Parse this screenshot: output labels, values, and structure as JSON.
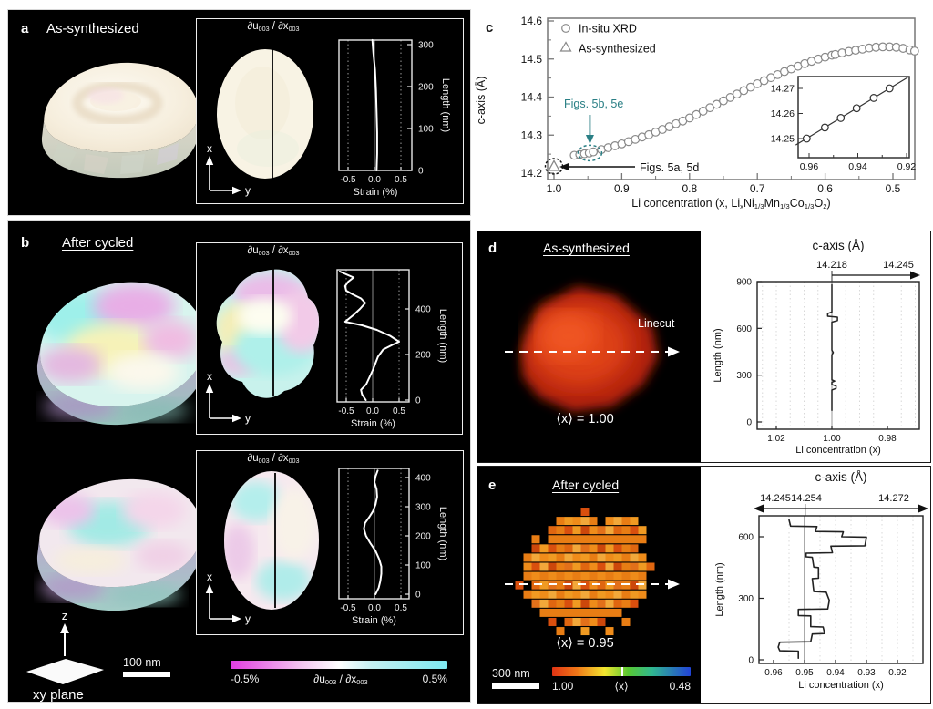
{
  "panel_a": {
    "label": "a",
    "title": "As-synthesized"
  },
  "panel_b": {
    "label": "b",
    "title": "After cycled"
  },
  "panel_c": {
    "label": "c"
  },
  "panel_d": {
    "label": "d",
    "title": "As-synthesized",
    "linecut_label": "Linecut",
    "avg_label": "⟨x⟩ = 1.00"
  },
  "panel_e": {
    "label": "e",
    "title": "After cycled",
    "avg_label": "⟨x⟩ = 0.95"
  },
  "shared": {
    "axis_x": "x",
    "axis_y": "y",
    "axis_z": "z",
    "xy_plane_label": "xy plane",
    "scalebar_a": "100 nm",
    "scalebar_e": "300 nm"
  },
  "du_parts": {
    "p1": "∂u",
    "s1": "003",
    "p2": " / ∂x",
    "s2": "003"
  },
  "c_xlabel_parts": {
    "p1": "Li concentration (x, Li",
    "s1": "x",
    "p2": "Ni",
    "s2": "1/3",
    "p3": "Mn",
    "s3": "1/3",
    "p4": "Co",
    "s4": "1/3",
    "p5": "O",
    "s5": "2",
    "p6": ")"
  },
  "strain_colorbar": {
    "min_label": "-0.5%",
    "max_label": "0.5%",
    "left_color": "#e23ce2",
    "mid_color": "#ffffff",
    "right_color": "#7de9f2"
  },
  "x_colorbar": {
    "min_label": "1.00",
    "center_label": "⟨x⟩",
    "max_label": "0.48",
    "colors": [
      "#e03414",
      "#f07818",
      "#f2e630",
      "#58c832",
      "#30b890",
      "#2244d8"
    ]
  },
  "chart_data": [
    {
      "id": "c-main",
      "type": "scatter",
      "xlabel": "Li concentration (x, LixNi1/3Mn1/3Co1/3O2)",
      "ylabel": "c-axis (Å)",
      "xlim": [
        1.06,
        0.44
      ],
      "ylim": [
        14.2,
        14.6
      ],
      "xticks": [
        "1.0",
        "0.9",
        "0.8",
        "0.7",
        "0.6",
        "0.5"
      ],
      "xtick_values": [
        1.0,
        0.9,
        0.8,
        0.7,
        0.6,
        0.5
      ],
      "yticks": [
        "14.2",
        "14.3",
        "14.4",
        "14.5",
        "14.6"
      ],
      "ytick_values": [
        14.2,
        14.3,
        14.4,
        14.5,
        14.6
      ],
      "legend": [
        {
          "marker": "circle",
          "label": "In-situ XRD"
        },
        {
          "marker": "triangle",
          "label": "As-synthesized"
        }
      ],
      "series": [
        {
          "name": "In-situ XRD",
          "marker": "circle",
          "points": [
            [
              0.97,
              14.247
            ],
            [
              0.962,
              14.249
            ],
            [
              0.955,
              14.251
            ],
            [
              0.948,
              14.253
            ],
            [
              0.942,
              14.256
            ],
            [
              0.93,
              14.262
            ],
            [
              0.92,
              14.267
            ],
            [
              0.91,
              14.272
            ],
            [
              0.9,
              14.277
            ],
            [
              0.89,
              14.283
            ],
            [
              0.88,
              14.289
            ],
            [
              0.87,
              14.295
            ],
            [
              0.86,
              14.301
            ],
            [
              0.85,
              14.308
            ],
            [
              0.84,
              14.315
            ],
            [
              0.83,
              14.322
            ],
            [
              0.82,
              14.33
            ],
            [
              0.81,
              14.337
            ],
            [
              0.8,
              14.345
            ],
            [
              0.79,
              14.354
            ],
            [
              0.78,
              14.363
            ],
            [
              0.77,
              14.372
            ],
            [
              0.76,
              14.381
            ],
            [
              0.75,
              14.39
            ],
            [
              0.74,
              14.399
            ],
            [
              0.73,
              14.408
            ],
            [
              0.72,
              14.417
            ],
            [
              0.71,
              14.426
            ],
            [
              0.7,
              14.435
            ],
            [
              0.69,
              14.443
            ],
            [
              0.68,
              14.451
            ],
            [
              0.67,
              14.459
            ],
            [
              0.66,
              14.467
            ],
            [
              0.65,
              14.474
            ],
            [
              0.64,
              14.481
            ],
            [
              0.63,
              14.488
            ],
            [
              0.62,
              14.494
            ],
            [
              0.61,
              14.5
            ],
            [
              0.6,
              14.505
            ],
            [
              0.59,
              14.51
            ],
            [
              0.585,
              14.512
            ],
            [
              0.575,
              14.516
            ],
            [
              0.565,
              14.52
            ],
            [
              0.555,
              14.523
            ],
            [
              0.545,
              14.526
            ],
            [
              0.535,
              14.529
            ],
            [
              0.525,
              14.531
            ],
            [
              0.515,
              14.532
            ],
            [
              0.505,
              14.532
            ],
            [
              0.495,
              14.531
            ],
            [
              0.485,
              14.528
            ],
            [
              0.475,
              14.524
            ],
            [
              0.468,
              14.521
            ]
          ]
        },
        {
          "name": "As-synthesized",
          "marker": "triangle",
          "points": [
            [
              1.0,
              14.218
            ]
          ]
        }
      ],
      "annotations": [
        {
          "text": "Figs. 5b, 5e",
          "color": "#2a7f85",
          "target": [
            0.947,
            14.253
          ]
        },
        {
          "text": "Figs. 5a, 5d",
          "color": "#111111",
          "target": [
            1.0,
            14.218
          ]
        }
      ]
    },
    {
      "id": "c-inset",
      "type": "scatter",
      "xticks": [
        "0.96",
        "0.94",
        "0.92"
      ],
      "xtick_values": [
        0.96,
        0.94,
        0.92
      ],
      "yticks": [
        "14.25",
        "14.26",
        "14.27"
      ],
      "ytick_values": [
        14.25,
        14.26,
        14.27
      ],
      "xlim": [
        0.965,
        0.918
      ],
      "ylim": [
        14.246,
        14.276
      ],
      "line": [
        [
          0.9655,
          14.2474
        ],
        [
          0.9195,
          14.2744
        ]
      ],
      "points": [
        [
          0.961,
          14.25
        ],
        [
          0.9535,
          14.2544
        ],
        [
          0.947,
          14.2582
        ],
        [
          0.9405,
          14.2621
        ],
        [
          0.9335,
          14.2662
        ],
        [
          0.927,
          14.27
        ]
      ]
    },
    {
      "id": "a-strain",
      "type": "line",
      "xlabel": "Strain (%)",
      "ylabel": "Length (nm)",
      "xticks": [
        "-0.5",
        "0.0",
        "0.5"
      ],
      "xtick_values": [
        -0.5,
        0,
        0.5
      ],
      "yticks": [
        "0",
        "100",
        "200",
        "300"
      ],
      "ytick_values": [
        0,
        100,
        200,
        300
      ],
      "xlim": [
        -0.69,
        0.71
      ],
      "ylim": [
        0,
        311
      ],
      "points": [
        [
          0.04,
          0
        ],
        [
          0.05,
          40
        ],
        [
          0.05,
          90
        ],
        [
          0.04,
          140
        ],
        [
          0.03,
          190
        ],
        [
          0.01,
          240
        ],
        [
          -0.02,
          280
        ],
        [
          -0.04,
          311
        ]
      ]
    },
    {
      "id": "b-strain-top",
      "type": "line",
      "xlabel": "Strain (%)",
      "ylabel": "Length (nm)",
      "xticks": [
        "-0.5",
        "0.0",
        "0.5"
      ],
      "xtick_values": [
        -0.5,
        0,
        0.5
      ],
      "yticks": [
        "0",
        "200",
        "400"
      ],
      "ytick_values": [
        0,
        200,
        400
      ],
      "xlim": [
        -0.69,
        0.71
      ],
      "ylim": [
        0,
        568
      ],
      "points": [
        [
          -0.13,
          0
        ],
        [
          -0.2,
          25
        ],
        [
          -0.22,
          45
        ],
        [
          -0.12,
          70
        ],
        [
          -0.06,
          100
        ],
        [
          0,
          130
        ],
        [
          0.05,
          160
        ],
        [
          0.1,
          190
        ],
        [
          0.2,
          222
        ],
        [
          0.37,
          242
        ],
        [
          0.5,
          256
        ],
        [
          0.33,
          282
        ],
        [
          0.08,
          308
        ],
        [
          -0.2,
          328
        ],
        [
          -0.52,
          344
        ],
        [
          -0.36,
          374
        ],
        [
          -0.24,
          400
        ],
        [
          -0.14,
          426
        ],
        [
          -0.22,
          446
        ],
        [
          -0.38,
          464
        ],
        [
          -0.5,
          480
        ],
        [
          -0.52,
          500
        ],
        [
          -0.46,
          520
        ],
        [
          -0.36,
          538
        ],
        [
          -0.5,
          552
        ],
        [
          -0.62,
          564
        ]
      ]
    },
    {
      "id": "b-strain-bottom",
      "type": "line",
      "xlabel": "Strain (%)",
      "ylabel": "Length (nm)",
      "xticks": [
        "-0.5",
        "0.0",
        "0.5"
      ],
      "xtick_values": [
        -0.5,
        0,
        0.5
      ],
      "yticks": [
        "0",
        "100",
        "200",
        "300",
        "400"
      ],
      "ytick_values": [
        0,
        100,
        200,
        300,
        400
      ],
      "xlim": [
        -0.69,
        0.71
      ],
      "ylim": [
        0,
        431
      ],
      "points": [
        [
          0.02,
          0
        ],
        [
          0.08,
          22
        ],
        [
          0.11,
          45
        ],
        [
          0.13,
          70
        ],
        [
          0.13,
          95
        ],
        [
          0.09,
          120
        ],
        [
          0.02,
          148
        ],
        [
          -0.08,
          175
        ],
        [
          -0.16,
          200
        ],
        [
          -0.2,
          224
        ],
        [
          -0.18,
          244
        ],
        [
          -0.1,
          264
        ],
        [
          -0.03,
          284
        ],
        [
          0.02,
          308
        ],
        [
          0.05,
          334
        ],
        [
          0.04,
          360
        ],
        [
          0,
          384
        ],
        [
          0.02,
          404
        ],
        [
          0.06,
          424
        ]
      ]
    },
    {
      "id": "d-li-profile",
      "type": "line",
      "title": "c-axis (Å)",
      "top_axis": {
        "left_label": "14.218",
        "right_label": "14.245",
        "arrow": "right"
      },
      "xlabel": "Li concentration (x)",
      "ylabel": "Length (nm)",
      "xticks": [
        "1.02",
        "1.00",
        "0.98"
      ],
      "xtick_values": [
        1.02,
        1.0,
        0.98
      ],
      "yticks": [
        "0",
        "300",
        "600",
        "900"
      ],
      "ytick_values": [
        0,
        300,
        600,
        900
      ],
      "xlim": [
        1.027,
        0.968
      ],
      "ylim": [
        0,
        900
      ],
      "ref_x": 1.0,
      "points": [
        [
          1.0,
          75
        ],
        [
          1.0,
          205
        ],
        [
          0.9985,
          215
        ],
        [
          0.9985,
          230
        ],
        [
          1.0,
          240
        ],
        [
          1.0,
          255
        ],
        [
          0.999,
          262
        ],
        [
          1.0,
          270
        ],
        [
          1.0,
          430
        ],
        [
          0.9995,
          445
        ],
        [
          1.0,
          460
        ],
        [
          1.0,
          640
        ],
        [
          0.998,
          650
        ],
        [
          0.998,
          672
        ],
        [
          1.0015,
          678
        ],
        [
          1.0015,
          695
        ],
        [
          1.0,
          705
        ],
        [
          1.0,
          880
        ]
      ]
    },
    {
      "id": "e-li-profile",
      "type": "line",
      "title": "c-axis (Å)",
      "top_axis": {
        "left_label": "14.245",
        "center_label": "14.254",
        "right_label": "14.272",
        "arrow": "both"
      },
      "xlabel": "Li concentration (x)",
      "ylabel": "Length (nm)",
      "xticks": [
        "0.96",
        "0.95",
        "0.94",
        "0.93",
        "0.92"
      ],
      "xtick_values": [
        0.96,
        0.95,
        0.94,
        0.93,
        0.92
      ],
      "yticks": [
        "0",
        "300",
        "600"
      ],
      "ytick_values": [
        0,
        300,
        600
      ],
      "xlim": [
        0.965,
        0.912
      ],
      "ylim": [
        0,
        690
      ],
      "ref_x": 0.95,
      "points": [
        [
          0.952,
          8
        ],
        [
          0.952,
          42
        ],
        [
          0.958,
          44
        ],
        [
          0.9585,
          62
        ],
        [
          0.958,
          86
        ],
        [
          0.948,
          88
        ],
        [
          0.9475,
          126
        ],
        [
          0.9435,
          128
        ],
        [
          0.944,
          160
        ],
        [
          0.948,
          162
        ],
        [
          0.948,
          214
        ],
        [
          0.952,
          216
        ],
        [
          0.952,
          246
        ],
        [
          0.9425,
          248
        ],
        [
          0.942,
          290
        ],
        [
          0.943,
          330
        ],
        [
          0.947,
          333
        ],
        [
          0.9475,
          396
        ],
        [
          0.9455,
          398
        ],
        [
          0.9455,
          450
        ],
        [
          0.947,
          452
        ],
        [
          0.9475,
          500
        ],
        [
          0.9495,
          502
        ],
        [
          0.9495,
          520
        ],
        [
          0.941,
          522
        ],
        [
          0.9415,
          554
        ],
        [
          0.9305,
          556
        ],
        [
          0.93,
          598
        ],
        [
          0.938,
          600
        ],
        [
          0.9375,
          624
        ],
        [
          0.9465,
          626
        ],
        [
          0.946,
          650
        ],
        [
          0.9545,
          652
        ],
        [
          0.955,
          682
        ]
      ]
    }
  ]
}
